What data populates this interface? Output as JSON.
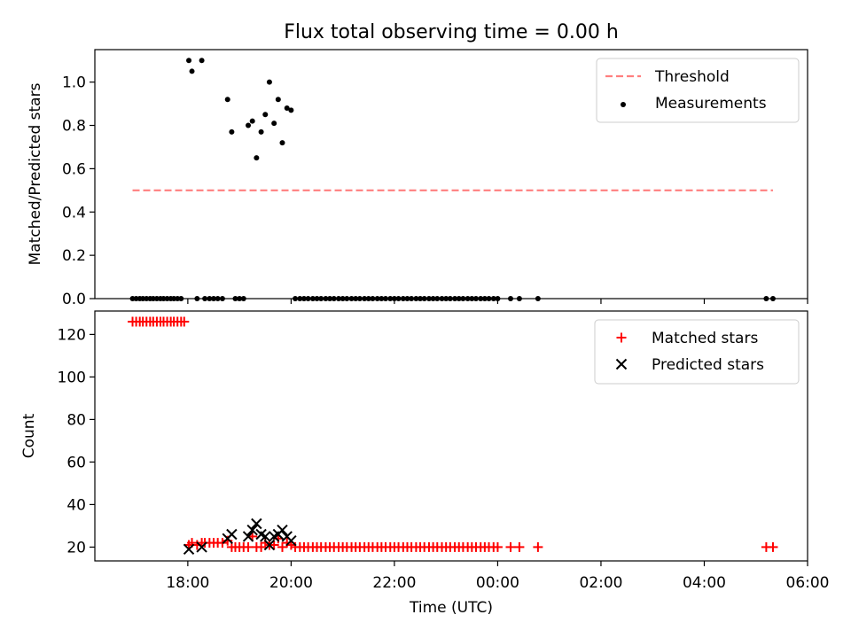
{
  "figure": {
    "title": "Flux total observing time = 0.00 h"
  },
  "chart_data": [
    {
      "type": "scatter",
      "ylabel": "Matched/Predicted stars",
      "xlabel": "",
      "x_unit": "hours (UTC, continuing past midnight)",
      "xlim": [
        16.2,
        30.0
      ],
      "ylim": [
        0,
        1.15
      ],
      "yticks": [
        0.0,
        0.2,
        0.4,
        0.6,
        0.8,
        1.0
      ],
      "ytick_labels": [
        "0.0",
        "0.2",
        "0.4",
        "0.6",
        "0.8",
        "1.0"
      ],
      "legend_position": "upper right",
      "threshold": {
        "name": "Threshold",
        "value": 0.5,
        "x_range": [
          16.93,
          29.33
        ],
        "color": "#ff7f7f",
        "style": "dashed"
      },
      "series": [
        {
          "name": "Measurements",
          "color": "#000000",
          "marker": "dot",
          "points": [
            [
              16.93,
              0
            ],
            [
              17.0,
              0
            ],
            [
              17.07,
              0
            ],
            [
              17.13,
              0
            ],
            [
              17.2,
              0
            ],
            [
              17.27,
              0
            ],
            [
              17.33,
              0
            ],
            [
              17.4,
              0
            ],
            [
              17.47,
              0
            ],
            [
              17.53,
              0
            ],
            [
              17.6,
              0
            ],
            [
              17.67,
              0
            ],
            [
              17.73,
              0
            ],
            [
              17.8,
              0
            ],
            [
              17.87,
              0
            ],
            [
              18.02,
              1.1
            ],
            [
              18.08,
              1.05
            ],
            [
              18.18,
              0
            ],
            [
              18.27,
              1.1
            ],
            [
              18.33,
              0
            ],
            [
              18.42,
              0
            ],
            [
              18.5,
              0
            ],
            [
              18.58,
              0
            ],
            [
              18.67,
              0
            ],
            [
              18.77,
              0.92
            ],
            [
              18.85,
              0.77
            ],
            [
              18.92,
              0
            ],
            [
              19.0,
              0
            ],
            [
              19.08,
              0
            ],
            [
              19.17,
              0.8
            ],
            [
              19.25,
              0.82
            ],
            [
              19.33,
              0.65
            ],
            [
              19.42,
              0.77
            ],
            [
              19.5,
              0.85
            ],
            [
              19.58,
              1.0
            ],
            [
              19.67,
              0.81
            ],
            [
              19.75,
              0.92
            ],
            [
              19.83,
              0.72
            ],
            [
              19.92,
              0.88
            ],
            [
              20.0,
              0.87
            ],
            [
              20.08,
              0
            ],
            [
              20.17,
              0
            ],
            [
              20.25,
              0
            ],
            [
              20.33,
              0
            ],
            [
              20.42,
              0
            ],
            [
              20.5,
              0
            ],
            [
              20.58,
              0
            ],
            [
              20.67,
              0
            ],
            [
              20.75,
              0
            ],
            [
              20.83,
              0
            ],
            [
              20.92,
              0
            ],
            [
              21.0,
              0
            ],
            [
              21.08,
              0
            ],
            [
              21.17,
              0
            ],
            [
              21.25,
              0
            ],
            [
              21.33,
              0
            ],
            [
              21.42,
              0
            ],
            [
              21.5,
              0
            ],
            [
              21.58,
              0
            ],
            [
              21.67,
              0
            ],
            [
              21.75,
              0
            ],
            [
              21.83,
              0
            ],
            [
              21.92,
              0
            ],
            [
              22.0,
              0
            ],
            [
              22.08,
              0
            ],
            [
              22.17,
              0
            ],
            [
              22.25,
              0
            ],
            [
              22.33,
              0
            ],
            [
              22.42,
              0
            ],
            [
              22.5,
              0
            ],
            [
              22.58,
              0
            ],
            [
              22.67,
              0
            ],
            [
              22.75,
              0
            ],
            [
              22.83,
              0
            ],
            [
              22.92,
              0
            ],
            [
              23.0,
              0
            ],
            [
              23.08,
              0
            ],
            [
              23.17,
              0
            ],
            [
              23.25,
              0
            ],
            [
              23.33,
              0
            ],
            [
              23.42,
              0
            ],
            [
              23.5,
              0
            ],
            [
              23.58,
              0
            ],
            [
              23.67,
              0
            ],
            [
              23.75,
              0
            ],
            [
              23.83,
              0
            ],
            [
              23.92,
              0
            ],
            [
              24.0,
              0
            ],
            [
              24.25,
              0
            ],
            [
              24.42,
              0
            ],
            [
              24.78,
              0
            ],
            [
              29.2,
              0
            ],
            [
              29.33,
              0
            ]
          ]
        }
      ]
    },
    {
      "type": "scatter",
      "ylabel": "Count",
      "xlabel": "Time (UTC)",
      "x_unit": "hours (UTC, continuing past midnight)",
      "xlim": [
        16.2,
        30.0
      ],
      "ylim": [
        13.5,
        131
      ],
      "yticks": [
        20,
        40,
        60,
        80,
        100,
        120
      ],
      "ytick_labels": [
        "20",
        "40",
        "60",
        "80",
        "100",
        "120"
      ],
      "xticks": [
        18,
        20,
        22,
        24,
        26,
        28,
        30
      ],
      "xtick_labels": [
        "18:00",
        "20:00",
        "22:00",
        "00:00",
        "02:00",
        "04:00",
        "06:00"
      ],
      "legend_position": "upper right",
      "series": [
        {
          "name": "Matched stars",
          "color": "#ff0000",
          "marker": "plus",
          "points": [
            [
              16.93,
              126
            ],
            [
              17.0,
              126
            ],
            [
              17.07,
              126
            ],
            [
              17.13,
              126
            ],
            [
              17.2,
              126
            ],
            [
              17.27,
              126
            ],
            [
              17.33,
              126
            ],
            [
              17.4,
              126
            ],
            [
              17.47,
              126
            ],
            [
              17.53,
              126
            ],
            [
              17.6,
              126
            ],
            [
              17.67,
              126
            ],
            [
              17.73,
              126
            ],
            [
              17.8,
              126
            ],
            [
              17.87,
              126
            ],
            [
              17.93,
              126
            ],
            [
              18.02,
              21
            ],
            [
              18.08,
              22
            ],
            [
              18.18,
              21
            ],
            [
              18.27,
              22
            ],
            [
              18.33,
              22
            ],
            [
              18.42,
              22
            ],
            [
              18.5,
              22
            ],
            [
              18.58,
              22
            ],
            [
              18.67,
              22
            ],
            [
              18.77,
              23
            ],
            [
              18.85,
              20
            ],
            [
              18.92,
              20
            ],
            [
              19.0,
              20
            ],
            [
              19.08,
              20
            ],
            [
              19.17,
              20
            ],
            [
              19.25,
              25
            ],
            [
              19.33,
              20
            ],
            [
              19.42,
              20
            ],
            [
              19.5,
              22
            ],
            [
              19.58,
              21
            ],
            [
              19.67,
              21
            ],
            [
              19.75,
              24
            ],
            [
              19.83,
              20
            ],
            [
              19.92,
              22
            ],
            [
              20.0,
              21
            ],
            [
              20.08,
              20
            ],
            [
              20.17,
              20
            ],
            [
              20.25,
              20
            ],
            [
              20.33,
              20
            ],
            [
              20.42,
              20
            ],
            [
              20.5,
              20
            ],
            [
              20.58,
              20
            ],
            [
              20.67,
              20
            ],
            [
              20.75,
              20
            ],
            [
              20.83,
              20
            ],
            [
              20.92,
              20
            ],
            [
              21.0,
              20
            ],
            [
              21.08,
              20
            ],
            [
              21.17,
              20
            ],
            [
              21.25,
              20
            ],
            [
              21.33,
              20
            ],
            [
              21.42,
              20
            ],
            [
              21.5,
              20
            ],
            [
              21.58,
              20
            ],
            [
              21.67,
              20
            ],
            [
              21.75,
              20
            ],
            [
              21.83,
              20
            ],
            [
              21.92,
              20
            ],
            [
              22.0,
              20
            ],
            [
              22.08,
              20
            ],
            [
              22.17,
              20
            ],
            [
              22.25,
              20
            ],
            [
              22.33,
              20
            ],
            [
              22.42,
              20
            ],
            [
              22.5,
              20
            ],
            [
              22.58,
              20
            ],
            [
              22.67,
              20
            ],
            [
              22.75,
              20
            ],
            [
              22.83,
              20
            ],
            [
              22.92,
              20
            ],
            [
              23.0,
              20
            ],
            [
              23.08,
              20
            ],
            [
              23.17,
              20
            ],
            [
              23.25,
              20
            ],
            [
              23.33,
              20
            ],
            [
              23.42,
              20
            ],
            [
              23.5,
              20
            ],
            [
              23.58,
              20
            ],
            [
              23.67,
              20
            ],
            [
              23.75,
              20
            ],
            [
              23.83,
              20
            ],
            [
              23.92,
              20
            ],
            [
              24.0,
              20
            ],
            [
              24.25,
              20
            ],
            [
              24.42,
              20
            ],
            [
              24.78,
              20
            ],
            [
              29.2,
              20
            ],
            [
              29.33,
              20
            ]
          ]
        },
        {
          "name": "Predicted stars",
          "color": "#000000",
          "marker": "x",
          "points": [
            [
              18.02,
              19
            ],
            [
              18.27,
              20
            ],
            [
              18.77,
              24
            ],
            [
              18.85,
              26
            ],
            [
              19.17,
              25
            ],
            [
              19.25,
              28
            ],
            [
              19.33,
              31
            ],
            [
              19.42,
              26
            ],
            [
              19.5,
              25
            ],
            [
              19.58,
              21
            ],
            [
              19.67,
              25
            ],
            [
              19.75,
              26
            ],
            [
              19.83,
              28
            ],
            [
              19.92,
              25
            ],
            [
              20.0,
              23
            ]
          ]
        }
      ]
    }
  ]
}
